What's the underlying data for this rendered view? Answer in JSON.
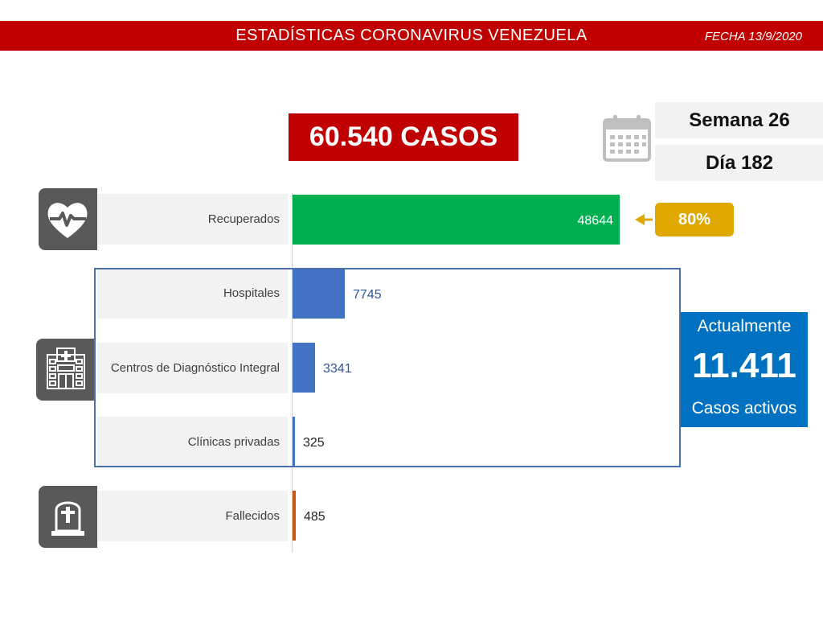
{
  "header": {
    "title": "ESTADÍSTICAS CORONAVIRUS VENEZUELA",
    "date": "FECHA 13/9/2020"
  },
  "summary": {
    "total_cases": "60.540 CASOS",
    "week": "Semana 26",
    "day": "Día 182"
  },
  "recovered_pct": "80%",
  "active": {
    "label_top": "Actualmente",
    "value": "11.411",
    "label_bottom": "Casos activos"
  },
  "icons": [
    "heart-pulse-icon",
    "hospital-icon",
    "gravestone-icon",
    "calendar-icon"
  ],
  "chart_data": {
    "type": "bar",
    "orientation": "horizontal",
    "categories": [
      "Recuperados",
      "Hospitales",
      "Centros de Diagnóstico Integral",
      "Clínicas privadas",
      "Fallecidos"
    ],
    "values": [
      48644,
      7745,
      3341,
      325,
      485
    ],
    "colors": [
      "#00b050",
      "#4472c4",
      "#4472c4",
      "#4472c4",
      "#c55a11"
    ],
    "value_label_colors": [
      "#ffffff",
      "#2f5597",
      "#2f5597",
      "#262626",
      "#262626"
    ],
    "xlim": [
      0,
      48644
    ]
  }
}
